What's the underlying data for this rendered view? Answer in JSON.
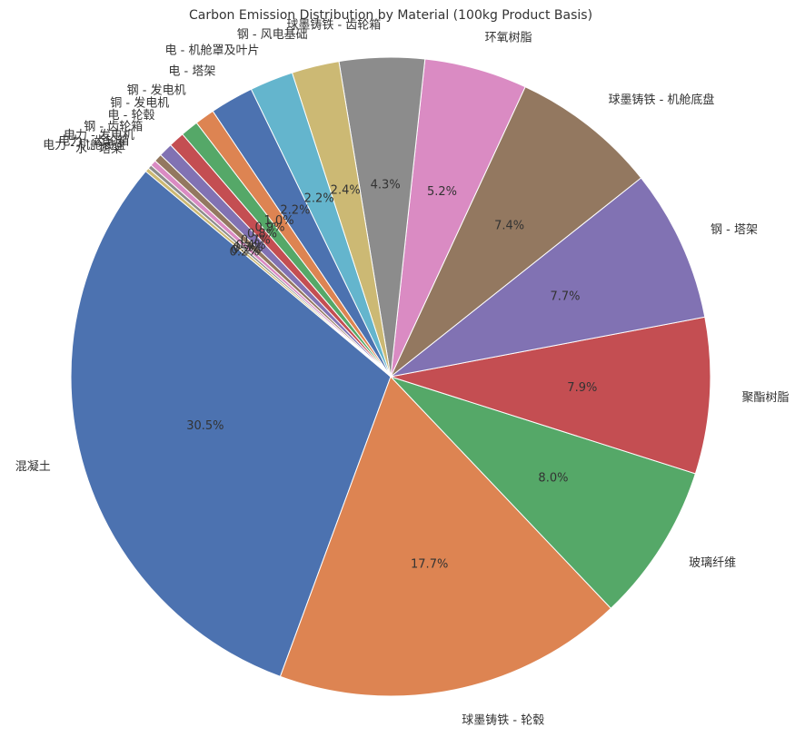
{
  "chart_data": {
    "type": "pie",
    "title": "Carbon Emission Distribution by Material (100kg Product Basis)",
    "categories": [
      "混凝土",
      "球墨铸铁 - 轮毂",
      "玻璃纤维",
      "聚酯树脂",
      "钢 - 塔架",
      "球墨铸铁 - 机舱底盘",
      "环氧树脂",
      "球墨铸铁 - 齿轮箱",
      "钢 - 风电基础",
      "电 - 机舱罩及叶片",
      "电 - 塔架",
      "钢 - 发电机",
      "铜 - 发电机",
      "电 - 轮毂",
      "钢 - 齿轮箱",
      "电力 - 发电机",
      "电力 - 齿轮箱",
      "电力 - 机舱底盘",
      "水 - 塔架"
    ],
    "values": [
      30.5,
      17.7,
      8.0,
      7.9,
      7.7,
      7.4,
      5.2,
      4.3,
      2.4,
      2.2,
      2.2,
      1.0,
      0.9,
      0.8,
      0.7,
      0.4,
      0.3,
      0.2,
      0.2
    ],
    "value_labels": [
      "30.5%",
      "17.7%",
      "8.0%",
      "7.9%",
      "7.7%",
      "7.4%",
      "5.2%",
      "4.3%",
      "2.4%",
      "2.2%",
      "2.2%",
      "1.0%",
      "0.9%",
      "0.8%",
      "0.7%",
      "0.4%",
      "0.3%",
      "0.2%",
      "0.2%"
    ],
    "colors": [
      "#4c72b0",
      "#dd8452",
      "#55a868",
      "#c44e52",
      "#8172b3",
      "#937860",
      "#da8bc3",
      "#8c8c8c",
      "#ccb974",
      "#64b5cd",
      "#4c72b0",
      "#dd8452",
      "#55a868",
      "#c44e52",
      "#8172b3",
      "#937860",
      "#da8bc3",
      "#8c8c8c",
      "#ccb974"
    ],
    "start_angle": 140
  }
}
